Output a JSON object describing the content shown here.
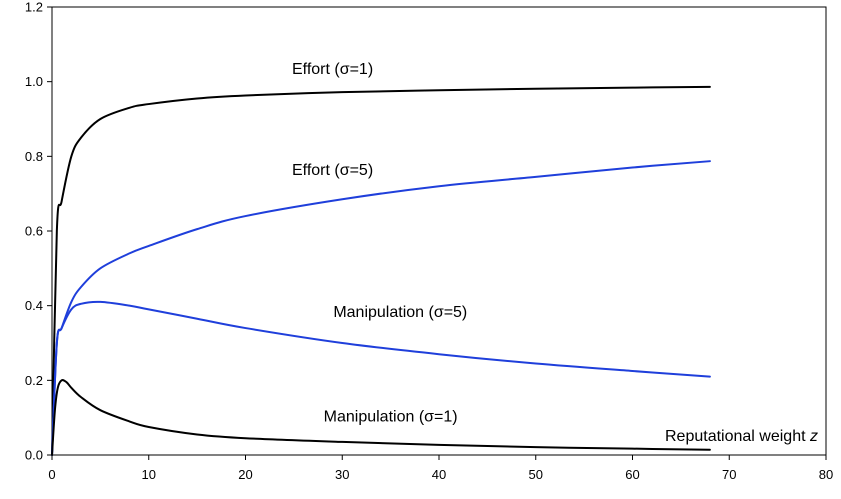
{
  "chart_data": {
    "type": "line",
    "title": "",
    "xlabel": "Reputational weight",
    "xlabel_var": "z",
    "ylabel": "",
    "xlim": [
      0,
      80
    ],
    "ylim": [
      0,
      1.2
    ],
    "xticks": [
      "0",
      "10",
      "20",
      "30",
      "40",
      "50",
      "60",
      "70",
      "80"
    ],
    "yticks": [
      "0.0",
      "0.2",
      "0.4",
      "0.6",
      "0.8",
      "1.0",
      "1.2"
    ],
    "grid": false,
    "series": [
      {
        "name": "Effort (σ=1)",
        "color": "#000000",
        "x": [
          0,
          0.5,
          1,
          2,
          3,
          5,
          8,
          10,
          15,
          20,
          30,
          40,
          50,
          60,
          68
        ],
        "y": [
          0,
          0.6,
          0.68,
          0.8,
          0.85,
          0.9,
          0.93,
          0.94,
          0.955,
          0.963,
          0.972,
          0.977,
          0.981,
          0.984,
          0.986
        ]
      },
      {
        "name": "Effort (σ=5)",
        "color": "#1f3fdb",
        "x": [
          0,
          0.5,
          1,
          2,
          3,
          5,
          8,
          10,
          15,
          20,
          30,
          40,
          50,
          60,
          68
        ],
        "y": [
          0,
          0.3,
          0.34,
          0.41,
          0.45,
          0.5,
          0.54,
          0.56,
          0.605,
          0.64,
          0.685,
          0.72,
          0.745,
          0.77,
          0.787
        ]
      },
      {
        "name": "Manipulation (σ=5)",
        "color": "#1f3fdb",
        "x": [
          0,
          0.5,
          1,
          2,
          3,
          5,
          8,
          10,
          15,
          20,
          30,
          40,
          50,
          60,
          68
        ],
        "y": [
          0,
          0.3,
          0.34,
          0.39,
          0.405,
          0.41,
          0.4,
          0.39,
          0.365,
          0.34,
          0.3,
          0.27,
          0.245,
          0.225,
          0.21
        ]
      },
      {
        "name": "Manipulation (σ=1)",
        "color": "#000000",
        "x": [
          0,
          0.3,
          0.6,
          1,
          1.5,
          2,
          3,
          5,
          8,
          10,
          15,
          20,
          30,
          40,
          50,
          60,
          68
        ],
        "y": [
          0,
          0.12,
          0.18,
          0.2,
          0.195,
          0.18,
          0.155,
          0.12,
          0.09,
          0.075,
          0.055,
          0.045,
          0.035,
          0.027,
          0.021,
          0.017,
          0.014
        ]
      }
    ],
    "annotations": [
      {
        "text": "Effort (σ=1)",
        "x": 29,
        "y": 1.02
      },
      {
        "text": "Effort (σ=5)",
        "x": 29,
        "y": 0.75
      },
      {
        "text": "Manipulation (σ=5)",
        "x": 36,
        "y": 0.37
      },
      {
        "text": "Manipulation (σ=1)",
        "x": 35,
        "y": 0.09
      }
    ]
  }
}
